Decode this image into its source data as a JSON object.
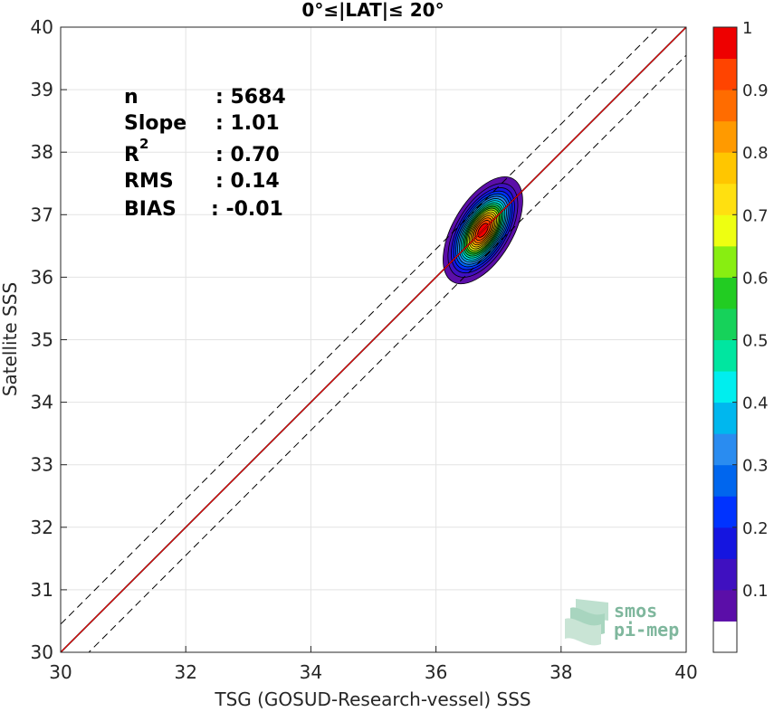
{
  "chart_data": {
    "type": "heatmap",
    "title": "0°≤|LAT|≤ 20°",
    "xlabel": "TSG (GOSUD-Research-vessel) SSS",
    "ylabel": "Satellite SSS",
    "xlim": [
      30,
      40
    ],
    "ylim": [
      30,
      40
    ],
    "xticks": [
      "30",
      "32",
      "34",
      "36",
      "38",
      "40"
    ],
    "yticks": [
      "30",
      "31",
      "32",
      "33",
      "34",
      "35",
      "36",
      "37",
      "38",
      "39",
      "40"
    ],
    "grid": true,
    "stats": [
      {
        "name": "n",
        "value": ": 5684"
      },
      {
        "name": "Slope",
        "value": ": 1.01"
      },
      {
        "name": "R",
        "sup": "2",
        "value": ": 0.70"
      },
      {
        "name": "RMS",
        "value": ": 0.14"
      },
      {
        "name": "BIAS",
        "value": ": -0.01"
      }
    ],
    "density_peak": {
      "x": 36.75,
      "y": 36.75,
      "sigma_x": 0.26,
      "sigma_y": 0.35,
      "rho": 0.55
    },
    "lines": {
      "one_to_one": {
        "color": "#000000",
        "style": "solid",
        "x": [
          30,
          40
        ],
        "y": [
          30,
          40
        ]
      },
      "regression": {
        "color": "#ff0000",
        "style": "solid",
        "x": [
          30,
          40
        ],
        "y": [
          30,
          40
        ]
      },
      "upper_bound": {
        "color": "#000000",
        "style": "dashed",
        "x": [
          30,
          40
        ],
        "y": [
          30.45,
          40.45
        ]
      },
      "lower_bound": {
        "color": "#000000",
        "style": "dashed",
        "x": [
          30,
          40
        ],
        "y": [
          29.55,
          39.55
        ]
      }
    },
    "colorbar": {
      "ticks": [
        "0.1",
        "0.2",
        "0.3",
        "0.4",
        "0.5",
        "0.6",
        "0.7",
        "0.8",
        "0.9",
        "1"
      ],
      "levels": [
        0,
        0.05,
        0.1,
        0.15,
        0.2,
        0.25,
        0.3,
        0.35,
        0.4,
        0.45,
        0.5,
        0.55,
        0.6,
        0.65,
        0.7,
        0.75,
        0.8,
        0.85,
        0.9,
        0.95,
        1
      ],
      "colors": [
        "#ffffff",
        "#5b0ea8",
        "#3f10c0",
        "#1515e0",
        "#0033ff",
        "#0066ee",
        "#2a8cf0",
        "#00b7ee",
        "#00eeee",
        "#00e6a0",
        "#16d25a",
        "#22cc22",
        "#88ee11",
        "#eeff11",
        "#ffe010",
        "#ffc600",
        "#ff9a00",
        "#ff6c00",
        "#ff4400",
        "#ee0000",
        "#8b0000"
      ]
    }
  },
  "watermark": {
    "line1": "smos",
    "line2": "pi-mep"
  }
}
